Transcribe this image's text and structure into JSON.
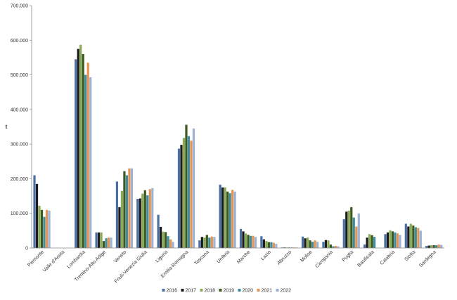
{
  "chart_data": {
    "type": "bar",
    "title": "",
    "xlabel": "",
    "ylabel": "t",
    "ylim": [
      0,
      700000
    ],
    "yticks": [
      0,
      100000,
      200000,
      300000,
      400000,
      500000,
      600000,
      700000
    ],
    "ytick_labels": [
      "0",
      "100.000",
      "200.000",
      "300.000",
      "400.000",
      "500.000",
      "600.000",
      "700.000"
    ],
    "grid": false,
    "legend_position": "bottom",
    "categories": [
      "Piemonte",
      "Valle d'Aosta",
      "Lombardia",
      "Trentino-Alto Adige",
      "Veneto",
      "Friuli-Venezia Giulia",
      "Liguria",
      "Emilia-Romagna",
      "Toscana",
      "Umbria",
      "Marche",
      "Lazio",
      "Abruzzo",
      "Molise",
      "Campania",
      "Puglia",
      "Basilicata",
      "Calabria",
      "Sicilia",
      "Sardegna"
    ],
    "series": [
      {
        "name": "2016",
        "color": "#4a6fa5",
        "values": [
          210000,
          0,
          545000,
          45000,
          192000,
          142000,
          96000,
          287000,
          22000,
          183000,
          55000,
          34000,
          1500,
          33000,
          18000,
          83000,
          10000,
          40000,
          70000,
          6000
        ]
      },
      {
        "name": "2017",
        "color": "#1b1b1b",
        "values": [
          185000,
          0,
          575000,
          45000,
          118000,
          143000,
          61000,
          298000,
          32000,
          175000,
          48000,
          25000,
          1500,
          28000,
          23000,
          105000,
          30000,
          45000,
          62000,
          7000
        ]
      },
      {
        "name": "2018",
        "color": "#8aaa58",
        "values": [
          122000,
          0,
          587000,
          45000,
          165000,
          157000,
          47000,
          318000,
          30000,
          175000,
          42000,
          20000,
          1500,
          30000,
          22000,
          108000,
          40000,
          51000,
          70000,
          8000
        ]
      },
      {
        "name": "2019",
        "color": "#3b5a1f",
        "values": [
          110000,
          0,
          560000,
          20000,
          222000,
          167000,
          46000,
          356000,
          38000,
          163000,
          38000,
          17000,
          1500,
          22000,
          10000,
          118000,
          37000,
          48000,
          65000,
          8000
        ]
      },
      {
        "name": "2020",
        "color": "#3f8d9e",
        "values": [
          90000,
          0,
          500000,
          28000,
          210000,
          152000,
          34000,
          323000,
          30000,
          158000,
          35000,
          17000,
          1500,
          18000,
          5000,
          88000,
          32000,
          45000,
          60000,
          8000
        ]
      },
      {
        "name": "2021",
        "color": "#e89450",
        "values": [
          110000,
          0,
          535000,
          30000,
          230000,
          170000,
          25000,
          310000,
          33000,
          168000,
          35000,
          15000,
          1500,
          22000,
          6000,
          62000,
          0,
          42000,
          58000,
          10000
        ]
      },
      {
        "name": "2022",
        "color": "#9cb3d8",
        "values": [
          108000,
          0,
          493000,
          30000,
          230000,
          173000,
          18000,
          345000,
          32000,
          163000,
          32000,
          12000,
          1500,
          18000,
          5000,
          100000,
          0,
          38000,
          50000,
          9000
        ]
      }
    ]
  }
}
